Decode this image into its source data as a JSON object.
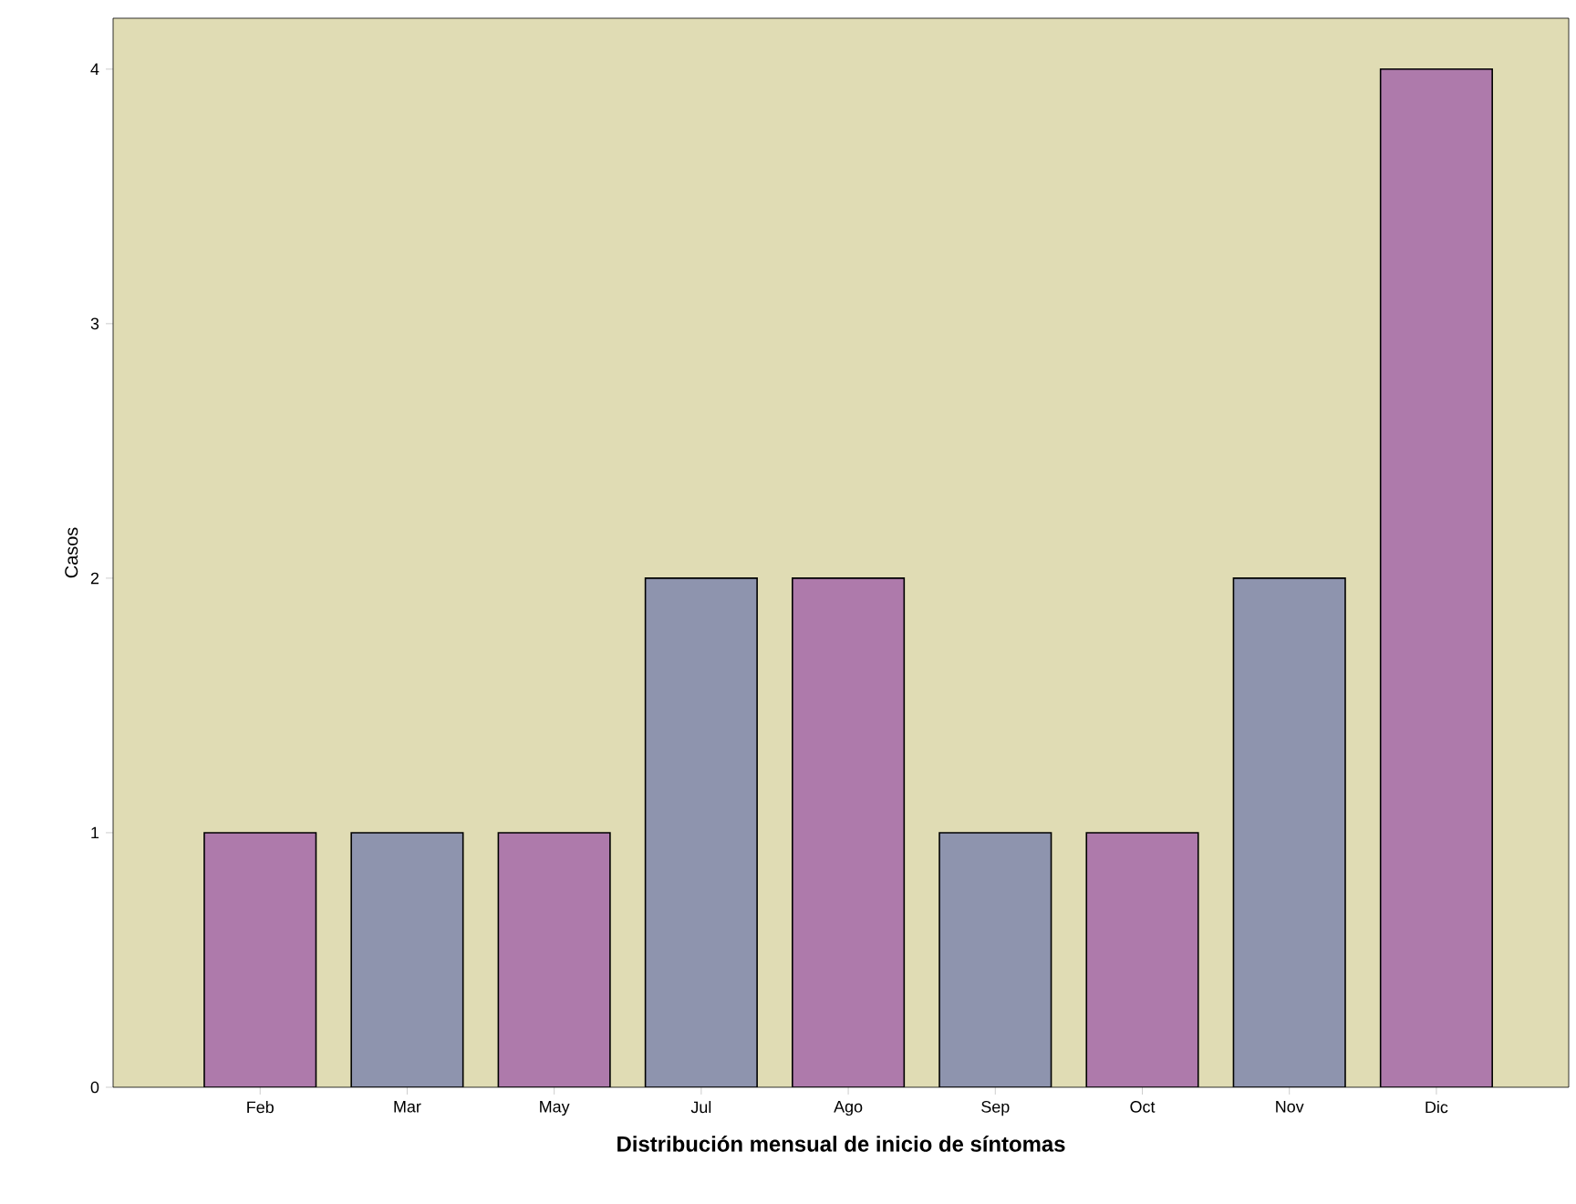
{
  "chart_data": {
    "type": "bar",
    "xlabel": "Distribución mensual de inicio de síntomas",
    "ylabel": "Casos",
    "categories": [
      "Feb",
      "Mar",
      "May",
      "Jul",
      "Ago",
      "Sep",
      "Oct",
      "Nov",
      "Dic"
    ],
    "values": [
      1,
      1,
      1,
      2,
      2,
      1,
      1,
      2,
      4
    ],
    "colors": [
      "#ae7aab",
      "#8e94ae",
      "#ae7aab",
      "#8e94ae",
      "#ae7aab",
      "#8e94ae",
      "#ae7aab",
      "#8e94ae",
      "#ae7aab"
    ],
    "ylim": [
      0,
      4.2
    ],
    "yticks": [
      0,
      1,
      2,
      3,
      4
    ],
    "grid": false
  }
}
